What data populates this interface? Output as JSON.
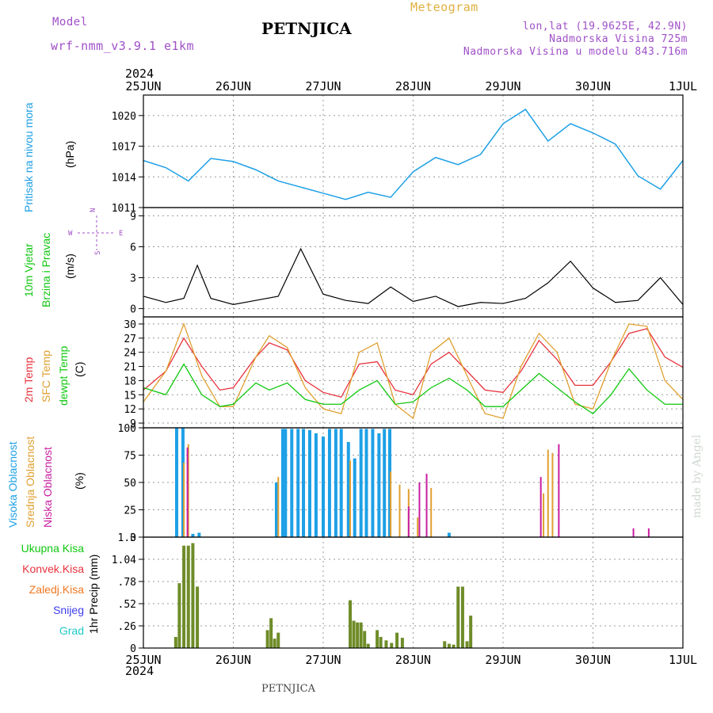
{
  "header": {
    "model_label": "Model",
    "model_name": "wrf-nmm_v3.9.1 e1km",
    "title": "PETNJICA",
    "meteogram": "Meteogram",
    "lonlat": "lon,lat (19.9625E, 42.9N)",
    "elevation": "Nadmorska Visina 725m",
    "model_elevation": "Nadmorska Visina u modelu 843.716m",
    "year_top": "2024",
    "year_bottom": "2024",
    "footer": "PETNJICA",
    "watermark": "made by Angel"
  },
  "colors": {
    "pressure": "#1ea0e6",
    "temp2m": "#e8323c",
    "sfc": "#e0a030",
    "dewpt": "#10c810",
    "cloud_high": "#1ea0e6",
    "cloud_mid": "#e0a030",
    "cloud_low": "#c81ea0",
    "precip_total": "#6e8c28",
    "precip_conv": "#e8323c"
  },
  "panels": {
    "pressure": {
      "label": "Pritisak na nivou mora",
      "unit": "(hPa)"
    },
    "wind": {
      "label1": "10m Vjetar",
      "label2": "Brzina i Pravac",
      "unit": "(m/s)",
      "compass_n": "N",
      "compass_s": "S",
      "compass_w": "W",
      "compass_e": "E"
    },
    "temp": {
      "label1": "2m Temp",
      "label2": "SFC Temp",
      "label3": "dewpt Temp",
      "unit": "(C)"
    },
    "cloud": {
      "label1": "Visoka Oblacnost",
      "label2": "Srednja Oblacnost",
      "label3": "Niska Oblacnost",
      "unit": "(%)"
    },
    "precip": {
      "axis_label": "1hr Precip (mm)",
      "legend": [
        "Ukupna Kisa",
        "Konvek.Kisa",
        "Zaledj.Kisa",
        "Snijeg",
        "Grad"
      ],
      "legend_colors": [
        "#10c810",
        "#e8323c",
        "#f07820",
        "#3c3cf0",
        "#20c8c8"
      ]
    }
  },
  "chart_data": [
    {
      "type": "line",
      "name": "pressure",
      "x_labels": [
        "25JUN",
        "26JUN",
        "27JUN",
        "28JUN",
        "29JUN",
        "30JUN",
        "1JUL"
      ],
      "ylim": [
        1011,
        1022
      ],
      "yticks": [
        1011,
        1014,
        1017,
        1020
      ],
      "x": [
        0,
        0.25,
        0.5,
        0.75,
        1.0,
        1.25,
        1.5,
        1.75,
        2.0,
        2.25,
        2.5,
        2.75,
        3.0,
        3.25,
        3.5,
        3.75,
        4.0,
        4.25,
        4.5,
        4.75,
        5.0,
        5.25,
        5.5,
        5.75,
        6.0
      ],
      "values": [
        1015.6,
        1014.9,
        1013.6,
        1015.8,
        1015.5,
        1014.7,
        1013.6,
        1013.0,
        1012.4,
        1011.8,
        1012.5,
        1012.0,
        1014.5,
        1015.9,
        1015.2,
        1016.2,
        1019.2,
        1020.6,
        1017.5,
        1019.2,
        1018.3,
        1017.2,
        1014.1,
        1012.8,
        1015.6
      ],
      "grid": true
    },
    {
      "type": "line",
      "name": "wind_speed",
      "ylim": [
        -0.8,
        9.8
      ],
      "yticks": [
        0,
        3,
        6,
        9
      ],
      "x": [
        0,
        0.25,
        0.45,
        0.6,
        0.75,
        1.0,
        1.25,
        1.5,
        1.75,
        2.0,
        2.25,
        2.5,
        2.75,
        3.0,
        3.25,
        3.5,
        3.75,
        4.0,
        4.25,
        4.5,
        4.75,
        5.0,
        5.25,
        5.5,
        5.75,
        6.0
      ],
      "values": [
        1.2,
        0.6,
        1.0,
        4.2,
        1.0,
        0.4,
        0.8,
        1.2,
        5.8,
        1.4,
        0.8,
        0.5,
        2.1,
        0.7,
        1.2,
        0.2,
        0.6,
        0.5,
        1.0,
        2.5,
        4.6,
        2.0,
        0.6,
        0.8,
        3.0,
        0.4
      ],
      "grid": true
    },
    {
      "type": "line",
      "name": "temperature",
      "ylim": [
        8,
        31.5
      ],
      "yticks": [
        9,
        12,
        15,
        18,
        21,
        24,
        27,
        30
      ],
      "series": [
        {
          "name": "2m Temp",
          "x": [
            0,
            0.25,
            0.45,
            0.65,
            0.85,
            1.0,
            1.25,
            1.4,
            1.6,
            1.8,
            2.0,
            2.2,
            2.4,
            2.6,
            2.8,
            3.0,
            3.2,
            3.4,
            3.6,
            3.8,
            4.0,
            4.2,
            4.4,
            4.6,
            4.8,
            5.0,
            5.2,
            5.4,
            5.6,
            5.8,
            6.0
          ],
          "values": [
            16.0,
            20.0,
            27.0,
            21.0,
            16.0,
            16.5,
            23.0,
            26.0,
            24.5,
            18.0,
            15.5,
            14.5,
            21.5,
            22.0,
            16.0,
            15.0,
            21.5,
            24.0,
            20.0,
            16.0,
            15.5,
            20.0,
            26.5,
            22.5,
            17.0,
            17.0,
            22.0,
            28.0,
            29.0,
            23.0,
            20.8
          ]
        },
        {
          "name": "SFC Temp",
          "x": [
            0,
            0.25,
            0.45,
            0.65,
            0.85,
            1.0,
            1.25,
            1.4,
            1.6,
            1.8,
            2.0,
            2.2,
            2.4,
            2.6,
            2.8,
            3.0,
            3.2,
            3.4,
            3.6,
            3.8,
            4.0,
            4.2,
            4.4,
            4.6,
            4.8,
            5.0,
            5.2,
            5.4,
            5.6,
            5.8,
            6.0
          ],
          "values": [
            13.5,
            20.0,
            30.0,
            19.0,
            12.5,
            12.5,
            23.0,
            27.5,
            25.0,
            16.5,
            12.0,
            11.0,
            24.0,
            26.0,
            13.0,
            10.0,
            24.0,
            27.0,
            19.0,
            11.0,
            10.0,
            21.0,
            28.0,
            24.0,
            13.0,
            12.0,
            22.0,
            30.0,
            29.5,
            18.0,
            14.0
          ]
        },
        {
          "name": "dewpt Temp",
          "x": [
            0,
            0.25,
            0.45,
            0.65,
            0.85,
            1.0,
            1.25,
            1.4,
            1.6,
            1.8,
            2.0,
            2.2,
            2.4,
            2.6,
            2.8,
            3.0,
            3.2,
            3.4,
            3.6,
            3.8,
            4.0,
            4.2,
            4.4,
            4.6,
            4.8,
            5.0,
            5.2,
            5.4,
            5.6,
            5.8,
            6.0
          ],
          "values": [
            16.5,
            15.0,
            21.5,
            15.0,
            12.5,
            13.0,
            17.5,
            16.0,
            17.5,
            14.0,
            13.0,
            13.0,
            16.0,
            18.0,
            13.0,
            13.5,
            16.5,
            18.5,
            16.0,
            12.5,
            12.5,
            16.0,
            19.5,
            16.5,
            13.5,
            11.0,
            15.0,
            20.5,
            16.0,
            13.0,
            13.0
          ]
        }
      ],
      "grid": true
    },
    {
      "type": "bar",
      "name": "cloud_cover",
      "ylim": [
        0,
        100
      ],
      "yticks": [
        0,
        25,
        50,
        75,
        100
      ],
      "series": [
        {
          "name": "Visoka Oblacnost",
          "x": [
            0.37,
            0.44,
            0.55,
            0.62,
            1.48,
            1.55,
            1.58,
            1.65,
            1.72,
            1.78,
            1.85,
            1.92,
            2.0,
            2.07,
            2.14,
            2.2,
            2.28,
            2.35,
            2.42,
            2.48,
            2.55,
            2.62,
            2.68,
            2.74,
            3.4
          ],
          "values": [
            100,
            100,
            3,
            4,
            50,
            99,
            99,
            99,
            99,
            99,
            98,
            95,
            92,
            99,
            99,
            99,
            87,
            72,
            99,
            99,
            99,
            95,
            99,
            99,
            4
          ]
        },
        {
          "name": "Srednja Oblacnost",
          "x": [
            0.45,
            0.5,
            1.5,
            2.3,
            2.75,
            2.85,
            2.95,
            3.05,
            3.2,
            4.45,
            4.5,
            4.55
          ],
          "values": [
            68,
            85,
            55,
            70,
            60,
            48,
            44,
            18,
            45,
            40,
            80,
            77
          ]
        },
        {
          "name": "Niska Oblacnost",
          "x": [
            0.49,
            2.95,
            3.07,
            3.15,
            4.42,
            4.62,
            5.45,
            5.62
          ],
          "values": [
            82,
            28,
            50,
            58,
            55,
            85,
            8,
            8
          ]
        }
      ],
      "grid": true
    },
    {
      "type": "bar",
      "name": "precipitation",
      "ylim": [
        0,
        1.3
      ],
      "yticks": [
        0,
        0.26,
        0.52,
        0.78,
        1.04,
        1.3
      ],
      "series": [
        {
          "name": "Ukupna Kisa",
          "x": [
            0.36,
            0.4,
            0.45,
            0.5,
            0.55,
            0.6,
            1.38,
            1.42,
            1.46,
            1.5,
            2.3,
            2.34,
            2.38,
            2.42,
            2.46,
            2.5,
            2.6,
            2.64,
            2.7,
            2.76,
            2.82,
            2.88,
            3.35,
            3.4,
            3.45,
            3.5,
            3.55,
            3.6,
            3.64
          ],
          "values": [
            0.13,
            0.76,
            1.2,
            1.2,
            1.23,
            0.72,
            0.21,
            0.35,
            0.11,
            0.18,
            0.56,
            0.32,
            0.3,
            0.3,
            0.2,
            0.05,
            0.21,
            0.13,
            0.09,
            0.06,
            0.18,
            0.12,
            0.08,
            0.05,
            0.04,
            0.72,
            0.72,
            0.08,
            0.38
          ]
        }
      ],
      "grid": true
    }
  ]
}
